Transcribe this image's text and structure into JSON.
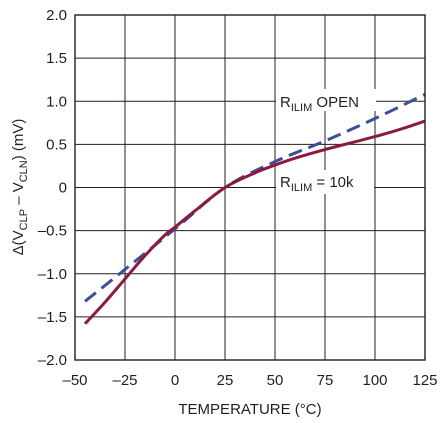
{
  "chart_data": {
    "type": "line",
    "xlabel": "TEMPERATURE (°C)",
    "ylabel": {
      "prefix": "Δ(V",
      "sub1": "CLP",
      "middle": " – V",
      "sub2": "CLN",
      "suffix": ") (mV)"
    },
    "xlim": [
      -50,
      125
    ],
    "ylim": [
      -2.0,
      2.0
    ],
    "x_ticks": [
      -50,
      -25,
      0,
      25,
      50,
      75,
      100,
      125
    ],
    "x_tick_labels": [
      "–50",
      "–25",
      "0",
      "25",
      "50",
      "75",
      "100",
      "125"
    ],
    "y_ticks": [
      2.0,
      1.5,
      1.0,
      0.5,
      0,
      -0.5,
      -1.0,
      -1.5,
      -2.0
    ],
    "y_tick_labels": [
      "2.0",
      "1.5",
      "1.0",
      "0.5",
      "0",
      "–0.5",
      "–1.0",
      "–1.5",
      "–2.0"
    ],
    "grid": true,
    "series": [
      {
        "label": {
          "main": "R",
          "sub": "ILIM",
          "suffix": " OPEN"
        },
        "color": "#3c4f9a",
        "dash": true,
        "x": [
          -45,
          -25,
          0,
          25,
          50,
          75,
          100,
          125
        ],
        "y": [
          -1.32,
          -0.95,
          -0.48,
          0.0,
          0.3,
          0.54,
          0.8,
          1.08
        ]
      },
      {
        "label": {
          "main": "R",
          "sub": "ILIM",
          "suffix": " = 10k"
        },
        "color": "#8b1a3f",
        "dash": false,
        "x": [
          -45,
          -35,
          -25,
          -15,
          -5,
          0,
          10,
          25,
          40,
          50,
          60,
          75,
          90,
          100,
          112,
          125
        ],
        "y": [
          -1.58,
          -1.33,
          -1.06,
          -0.79,
          -0.55,
          -0.46,
          -0.27,
          0.0,
          0.17,
          0.26,
          0.34,
          0.44,
          0.53,
          0.59,
          0.67,
          0.77
        ]
      }
    ]
  }
}
